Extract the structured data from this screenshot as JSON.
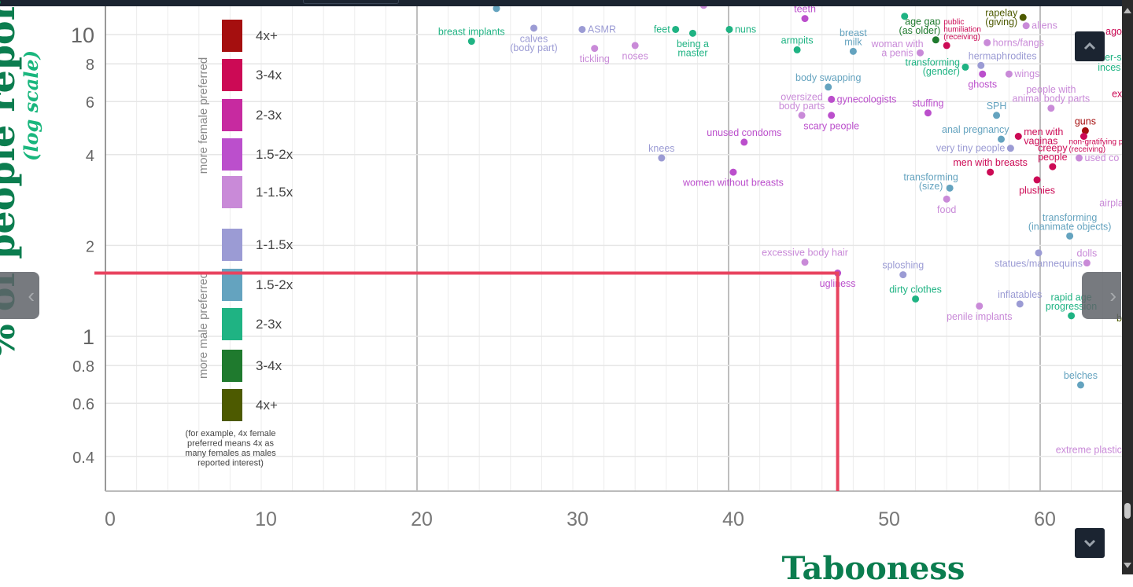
{
  "colors": {
    "F4": "#a50f0f",
    "F3": "#cc0a55",
    "F2": "#c72aa0",
    "F1.5": "#bb4fcc",
    "F1": "#c98ad8",
    "M1": "#9b9bd4",
    "M1.5": "#64a3bf",
    "M2": "#1fb383",
    "M3": "#1f7a2e",
    "M4": "#4d5a00",
    "highlight": "#e8435f",
    "title": "#0b7d4f"
  },
  "chart_data": {
    "type": "scatter",
    "xlabel": "Tabooness",
    "ylabel": "% of people reporting thing",
    "ylabel_sub": "(log scale)",
    "xscale": "linear",
    "yscale": "log",
    "xlim": [
      0,
      65.3
    ],
    "ylim": [
      0.31,
      12.4
    ],
    "x_ticks": [
      0,
      10,
      20,
      30,
      40,
      50,
      60
    ],
    "y_ticks": [
      0.4,
      0.6,
      0.8,
      1,
      2,
      4,
      6,
      8,
      10
    ],
    "y_tick_labels": [
      "0.4",
      "0.6",
      "0.8",
      "1",
      "2",
      "4",
      "6",
      "8",
      "10"
    ],
    "grid": true,
    "legend": {
      "placement": "left",
      "female_title": "more female preferred",
      "male_title": "more male preferred",
      "female": [
        {
          "cat": "F4",
          "label": "4x+"
        },
        {
          "cat": "F3",
          "label": "3-4x"
        },
        {
          "cat": "F2",
          "label": "2-3x"
        },
        {
          "cat": "F1.5",
          "label": "1.5-2x"
        },
        {
          "cat": "F1",
          "label": "1-1.5x"
        }
      ],
      "male": [
        {
          "cat": "M1",
          "label": "1-1.5x"
        },
        {
          "cat": "M1.5",
          "label": "1.5-2x"
        },
        {
          "cat": "M2",
          "label": "2-3x"
        },
        {
          "cat": "M3",
          "label": "3-4x"
        },
        {
          "cat": "M4",
          "label": "4x+"
        }
      ],
      "note": [
        "(for example, 4x female",
        "preferred means 4x as",
        "many females as males",
        "reported interest)"
      ]
    },
    "highlight": {
      "x": 47.0,
      "y": 1.62
    },
    "points": [
      {
        "label": "breast implants",
        "x": 23.5,
        "y": 9.5,
        "cat": "M2",
        "pos": "above"
      },
      {
        "label": "calves\n(body part)",
        "x": 27.5,
        "y": 10.5,
        "cat": "M1",
        "pos": "below"
      },
      {
        "label": "ASMR",
        "x": 30.6,
        "y": 10.4,
        "cat": "M1",
        "pos": "right"
      },
      {
        "label": "tickling",
        "x": 31.4,
        "y": 9.0,
        "cat": "F1",
        "pos": "below"
      },
      {
        "label": "noses",
        "x": 34.0,
        "y": 9.2,
        "cat": "F1",
        "pos": "below"
      },
      {
        "label": "feet",
        "x": 36.6,
        "y": 10.4,
        "cat": "M2",
        "pos": "left"
      },
      {
        "label": "being a\nmaster",
        "x": 37.7,
        "y": 10.1,
        "cat": "M2",
        "pos": "below"
      },
      {
        "label": "nuns",
        "x": 40.05,
        "y": 10.4,
        "cat": "M2",
        "pos": "right"
      },
      {
        "label": "teeth",
        "x": 44.9,
        "y": 11.3,
        "cat": "F1.5",
        "pos": "above"
      },
      {
        "label": "armpits",
        "x": 44.4,
        "y": 8.9,
        "cat": "M2",
        "pos": "above"
      },
      {
        "label": "breast\nmilk",
        "x": 48.0,
        "y": 8.8,
        "cat": "M1.5",
        "pos": "above"
      },
      {
        "label": "woman with\na penis",
        "x": 52.3,
        "y": 8.7,
        "cat": "F1",
        "pos": "left"
      },
      {
        "label": "age gap\n(as older)",
        "x": 53.3,
        "y": 9.6,
        "cat": "M3",
        "pos": "above"
      },
      {
        "label": "public\nhumiliation\n(receiving)",
        "x": 54.0,
        "y": 9.2,
        "cat": "F3",
        "pos": "above",
        "small": true
      },
      {
        "label": "rapelay\n(giving)",
        "x": 58.9,
        "y": 11.4,
        "cat": "M4",
        "pos": "left"
      },
      {
        "label": "aliens",
        "x": 59.1,
        "y": 10.7,
        "cat": "F1",
        "pos": "right"
      },
      {
        "label": "horns/fangs",
        "x": 56.6,
        "y": 9.4,
        "cat": "F1",
        "pos": "right"
      },
      {
        "label": "transforming\n(gender)",
        "x": 55.2,
        "y": 7.8,
        "cat": "M2",
        "pos": "left"
      },
      {
        "label": "hermaphrodites",
        "x": 56.2,
        "y": 7.9,
        "cat": "M1",
        "pos": "above"
      },
      {
        "label": "ghosts",
        "x": 56.3,
        "y": 7.4,
        "cat": "F1.5",
        "pos": "below"
      },
      {
        "label": "wings",
        "x": 58.0,
        "y": 7.4,
        "cat": "F1",
        "pos": "right"
      },
      {
        "label": "body swapping",
        "x": 46.4,
        "y": 6.7,
        "cat": "M1.5",
        "pos": "above"
      },
      {
        "label": "gynecologists",
        "x": 46.6,
        "y": 6.1,
        "cat": "F1.5",
        "pos": "right"
      },
      {
        "label": "oversized\nbody parts",
        "x": 44.7,
        "y": 5.4,
        "cat": "F1",
        "pos": "above"
      },
      {
        "label": "scary people",
        "x": 46.6,
        "y": 5.4,
        "cat": "F1.5",
        "pos": "below"
      },
      {
        "label": "stuffing",
        "x": 52.8,
        "y": 5.5,
        "cat": "F1.5",
        "pos": "above"
      },
      {
        "label": "SPH",
        "x": 57.2,
        "y": 5.4,
        "cat": "M1.5",
        "pos": "above"
      },
      {
        "label": "people with\nanimal body parts",
        "x": 60.7,
        "y": 5.7,
        "cat": "F1",
        "pos": "above"
      },
      {
        "label": "guns",
        "x": 62.9,
        "y": 4.8,
        "cat": "F4",
        "pos": "above"
      },
      {
        "label": "non-gratifying p\n(receiving)",
        "x": 62.8,
        "y": 4.6,
        "cat": "F3",
        "pos": "below",
        "small": true
      },
      {
        "label": "men with\nvaginas",
        "x": 58.6,
        "y": 4.6,
        "cat": "F3",
        "pos": "right"
      },
      {
        "label": "anal pregnancy",
        "x": 57.5,
        "y": 4.5,
        "cat": "M1.5",
        "pos": "above"
      },
      {
        "label": "very tiny people",
        "x": 58.1,
        "y": 4.2,
        "cat": "M1",
        "pos": "left"
      },
      {
        "label": "used co",
        "x": 62.5,
        "y": 3.9,
        "cat": "F1",
        "pos": "right"
      },
      {
        "label": "creepy\npeople",
        "x": 60.8,
        "y": 3.65,
        "cat": "F3",
        "pos": "above"
      },
      {
        "label": "men with breasts",
        "x": 56.8,
        "y": 3.5,
        "cat": "F3",
        "pos": "above"
      },
      {
        "label": "plushies",
        "x": 59.8,
        "y": 3.3,
        "cat": "F3",
        "pos": "below"
      },
      {
        "label": "transforming\n(size)",
        "x": 54.2,
        "y": 3.1,
        "cat": "M1.5",
        "pos": "above"
      },
      {
        "label": "food",
        "x": 54.0,
        "y": 2.85,
        "cat": "F1",
        "pos": "below"
      },
      {
        "label": "unused condoms",
        "x": 41.0,
        "y": 4.4,
        "cat": "F1.5",
        "pos": "above"
      },
      {
        "label": "knees",
        "x": 35.7,
        "y": 3.9,
        "cat": "M1",
        "pos": "above"
      },
      {
        "label": "women without breasts",
        "x": 40.3,
        "y": 3.5,
        "cat": "F1.5",
        "pos": "below"
      },
      {
        "label": "transforming\n(inanimate objects)",
        "x": 61.9,
        "y": 2.15,
        "cat": "M1.5",
        "pos": "above"
      },
      {
        "label": "statues/mannequins",
        "x": 59.9,
        "y": 1.89,
        "cat": "M1",
        "pos": "below"
      },
      {
        "label": "dolls",
        "x": 63.0,
        "y": 1.75,
        "cat": "F1",
        "pos": "above"
      },
      {
        "label": "excessive body hair",
        "x": 44.9,
        "y": 1.76,
        "cat": "F1",
        "pos": "above"
      },
      {
        "label": "ugliness",
        "x": 47.0,
        "y": 1.62,
        "cat": "F1.5",
        "pos": "below"
      },
      {
        "label": "sploshing",
        "x": 51.2,
        "y": 1.6,
        "cat": "M1",
        "pos": "above"
      },
      {
        "label": "dirty clothes",
        "x": 52.0,
        "y": 1.33,
        "cat": "M2",
        "pos": "above"
      },
      {
        "label": "penile implants",
        "x": 56.1,
        "y": 1.26,
        "cat": "F1",
        "pos": "below"
      },
      {
        "label": "inflatables",
        "x": 58.7,
        "y": 1.28,
        "cat": "M1",
        "pos": "above"
      },
      {
        "label": "rapid age\nprogression",
        "x": 62.0,
        "y": 1.17,
        "cat": "M2",
        "pos": "above"
      },
      {
        "label": "belches",
        "x": 62.6,
        "y": 0.69,
        "cat": "M1.5",
        "pos": "above"
      },
      {
        "label": "",
        "x": 25.1,
        "y": 12.2,
        "cat": "M1.5",
        "pos": "above"
      },
      {
        "label": "",
        "x": 38.4,
        "y": 12.5,
        "cat": "F1",
        "pos": "above"
      },
      {
        "label": "",
        "x": 51.3,
        "y": 11.5,
        "cat": "M2",
        "pos": "above"
      }
    ],
    "edge_labels": [
      {
        "text": "ago",
        "x": 64.2,
        "y": 10.0,
        "cat": "F3"
      },
      {
        "text": "sister-s",
        "x": 63.2,
        "y": 8.2,
        "cat": "M2"
      },
      {
        "text": "inces",
        "x": 63.7,
        "y": 7.6,
        "cat": "M2"
      },
      {
        "text": "ex",
        "x": 64.6,
        "y": 6.2,
        "cat": "F3"
      },
      {
        "text": "airpla",
        "x": 63.8,
        "y": 2.7,
        "cat": "F1"
      },
      {
        "text": "b",
        "x": 64.9,
        "y": 1.12,
        "cat": "M4"
      },
      {
        "text": "extreme plastic",
        "x": 61.0,
        "y": 0.41,
        "cat": "F1"
      }
    ]
  },
  "controls": {
    "scroll_up": "scroll-up",
    "scroll_down": "scroll-down",
    "prev": "‹",
    "next": "›"
  }
}
